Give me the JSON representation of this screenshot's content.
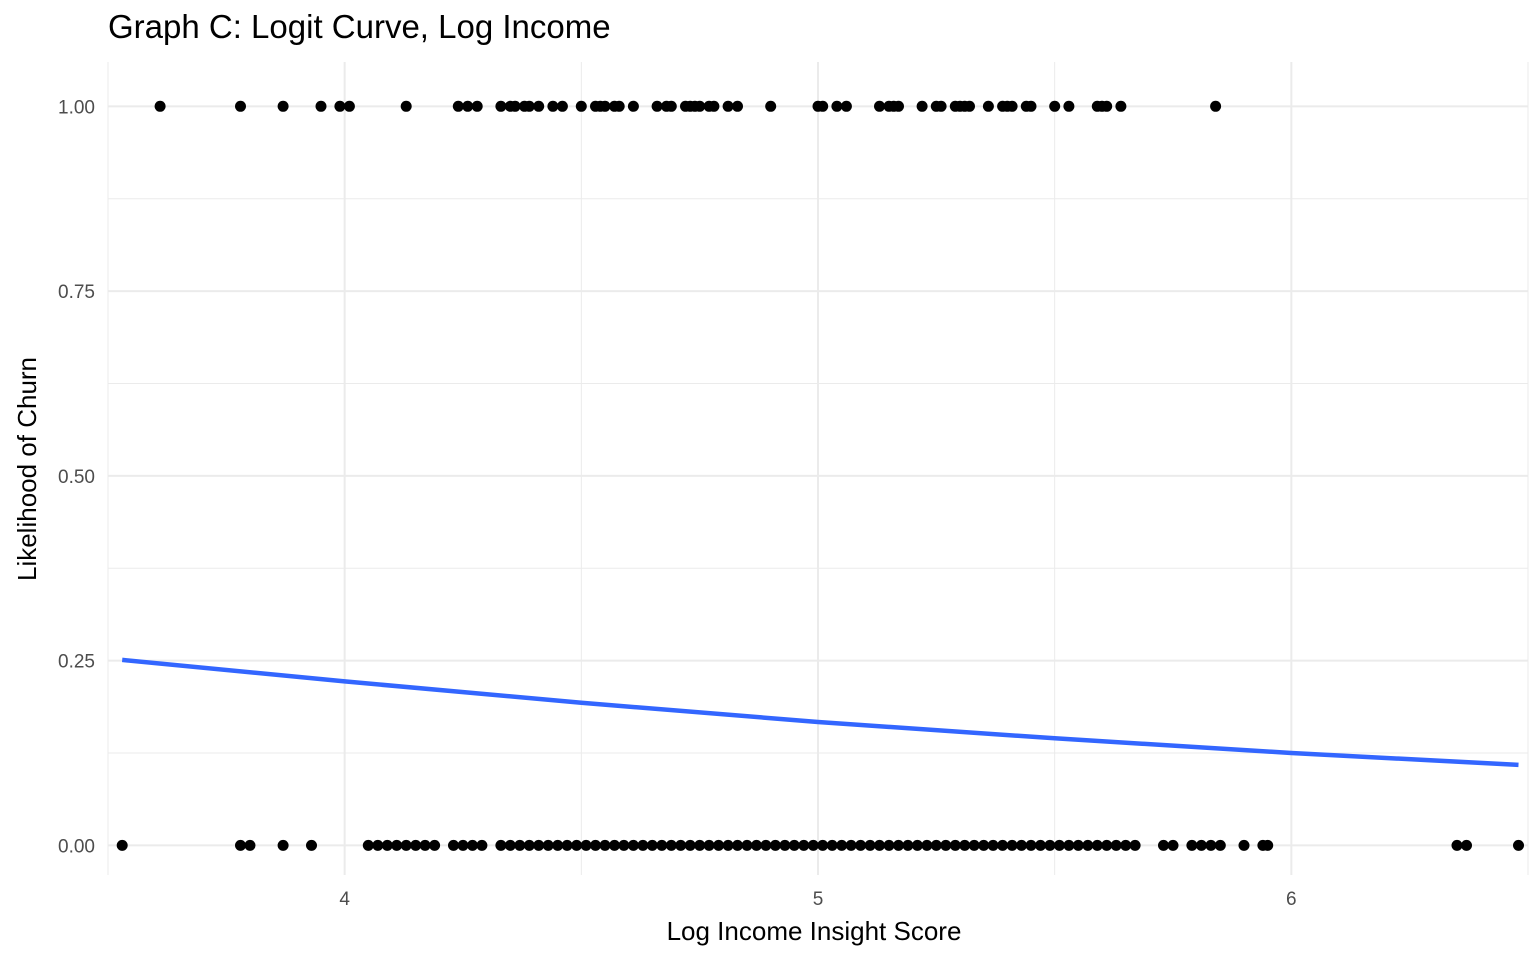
{
  "chart_data": {
    "type": "scatter",
    "title": "Graph C: Logit Curve, Log Income",
    "xlabel": "Log Income Insight Score",
    "ylabel": "Likelihood of Churn",
    "xlim": [
      3.5,
      6.5
    ],
    "ylim": [
      -0.04,
      1.06
    ],
    "x_ticks": [
      4,
      5,
      6
    ],
    "x_tick_labels": [
      "4",
      "5",
      "6"
    ],
    "y_ticks": [
      0,
      0.25,
      0.5,
      0.75,
      1.0
    ],
    "y_tick_labels": [
      "0.00",
      "0.25",
      "0.50",
      "0.75",
      "1.00"
    ],
    "grid": true,
    "colors": {
      "points": "#000000",
      "curve": "#3366ff",
      "grid": "#ebebeb"
    },
    "series": [
      {
        "type": "scatter",
        "y": 1,
        "x": [
          3.61,
          3.78,
          3.87,
          3.95,
          3.99,
          4.01,
          4.13,
          4.24,
          4.26,
          4.28,
          4.33,
          4.35,
          4.36,
          4.38,
          4.39,
          4.41,
          4.44,
          4.46,
          4.5,
          4.53,
          4.54,
          4.55,
          4.57,
          4.58,
          4.61,
          4.66,
          4.68,
          4.69,
          4.72,
          4.73,
          4.74,
          4.75,
          4.77,
          4.78,
          4.81,
          4.83,
          4.9,
          5.0,
          5.01,
          5.04,
          5.06,
          5.13,
          5.15,
          5.16,
          5.17,
          5.22,
          5.25,
          5.26,
          5.29,
          5.3,
          5.31,
          5.32,
          5.36,
          5.39,
          5.4,
          5.41,
          5.44,
          5.45,
          5.5,
          5.53,
          5.59,
          5.6,
          5.61,
          5.64,
          5.84
        ]
      },
      {
        "type": "scatter",
        "y": 0,
        "x": [
          3.53,
          3.78,
          3.8,
          3.87,
          3.93,
          4.05,
          4.07,
          4.09,
          4.11,
          4.13,
          4.15,
          4.17,
          4.19,
          4.23,
          4.25,
          4.27,
          4.29,
          4.33,
          4.35,
          4.37,
          4.39,
          4.41,
          4.43,
          4.45,
          4.47,
          4.49,
          4.51,
          4.53,
          4.55,
          4.57,
          4.59,
          4.61,
          4.63,
          4.65,
          4.67,
          4.69,
          4.71,
          4.73,
          4.75,
          4.77,
          4.79,
          4.81,
          4.83,
          4.85,
          4.87,
          4.89,
          4.91,
          4.93,
          4.95,
          4.97,
          4.99,
          5.01,
          5.03,
          5.05,
          5.07,
          5.09,
          5.11,
          5.13,
          5.15,
          5.17,
          5.19,
          5.21,
          5.23,
          5.25,
          5.27,
          5.29,
          5.31,
          5.33,
          5.35,
          5.37,
          5.39,
          5.41,
          5.43,
          5.45,
          5.47,
          5.49,
          5.51,
          5.53,
          5.55,
          5.57,
          5.59,
          5.61,
          5.63,
          5.65,
          5.67,
          5.73,
          5.75,
          5.79,
          5.81,
          5.83,
          5.85,
          5.9,
          5.94,
          5.95,
          6.35,
          6.37,
          6.48
        ]
      },
      {
        "type": "line",
        "x": [
          3.53,
          4.0,
          4.5,
          5.0,
          5.5,
          6.0,
          6.48
        ],
        "y": [
          0.251,
          0.222,
          0.193,
          0.167,
          0.145,
          0.125,
          0.109
        ]
      }
    ]
  }
}
